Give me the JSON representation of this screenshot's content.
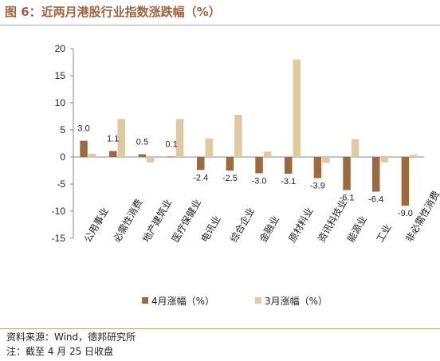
{
  "figure": {
    "title": "图 6：近两月港股行业指数涨跌幅（%）",
    "source": "资料来源：Wind，德邦研究所",
    "note": "注：截至 4 月 25 日收盘"
  },
  "colors": {
    "apr": "#9c6a3d",
    "mar": "#ddc9a2",
    "title": "#a0643f",
    "rule": "#c8a080",
    "axis": "#888888"
  },
  "chart_data": {
    "type": "bar",
    "categories": [
      "公用事业",
      "必需性消费",
      "地产建筑业",
      "医疗保健业",
      "电讯业",
      "综合企业",
      "金融业",
      "原材料业",
      "资讯科技业",
      "能源业",
      "工业",
      "非必需性消费"
    ],
    "series": [
      {
        "name": "4月涨幅（%）",
        "values": [
          3.0,
          1.1,
          0.5,
          0.1,
          -2.4,
          -2.5,
          -3.0,
          -3.1,
          -3.9,
          -6.1,
          -6.4,
          -9.0
        ]
      },
      {
        "name": "3月涨幅（%）",
        "values": [
          0.6,
          7.0,
          -1.0,
          7.0,
          3.4,
          7.8,
          1.0,
          18.0,
          -1.1,
          3.3,
          -1.0,
          0.4
        ]
      }
    ],
    "data_labels": [
      "3.0",
      "1.1",
      "0.5",
      "0.1",
      "-2.4",
      "-2.5",
      "-3.0",
      "-3.1",
      "-3.9",
      "-6.1",
      "-6.4",
      "-9.0"
    ],
    "yticks": [
      "20",
      "15",
      "10",
      "5",
      "0",
      "-5",
      "-10",
      "-15"
    ],
    "ytick_values": [
      20,
      15,
      10,
      5,
      0,
      -5,
      -10,
      -15
    ],
    "ylim": [
      -15,
      20
    ],
    "legend": "bottom"
  }
}
